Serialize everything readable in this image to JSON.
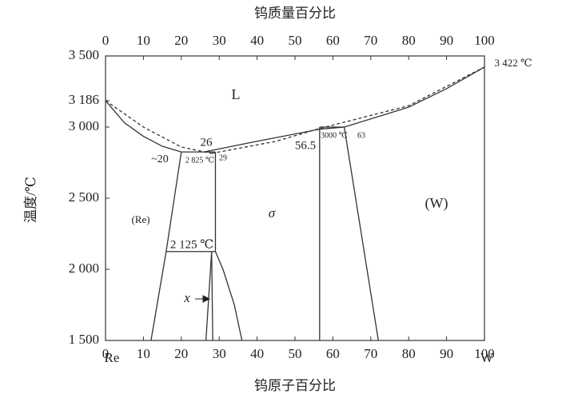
{
  "chart_data": {
    "type": "line",
    "title": "钨质量百分比",
    "xlabel": "钨原子百分比",
    "ylabel": "温度/℃",
    "xlim": [
      0,
      100
    ],
    "xticks": [
      0,
      10,
      20,
      30,
      40,
      50,
      60,
      70,
      80,
      90,
      100
    ],
    "x2lim": [
      0,
      100
    ],
    "x2ticks": [
      0,
      10,
      20,
      30,
      40,
      50,
      60,
      70,
      80,
      90,
      100
    ],
    "ylim": [
      1500,
      3500
    ],
    "yticks": [
      {
        "value": 1500,
        "label": "1 500"
      },
      {
        "value": 2000,
        "label": "2 000"
      },
      {
        "value": 2500,
        "label": "2 500"
      },
      {
        "value": 3000,
        "label": "3 000"
      },
      {
        "value": 3186,
        "label": "3 186"
      },
      {
        "value": 3500,
        "label": "3 500"
      }
    ],
    "series": [
      {
        "color": "#333333",
        "dashed": false,
        "x": [
          0,
          5,
          10,
          15,
          20
        ],
        "y": [
          3186,
          3030,
          2935,
          2865,
          2825
        ]
      },
      {
        "color": "#333333",
        "dashed": false,
        "x": [
          20,
          29
        ],
        "y": [
          2825,
          2825
        ]
      },
      {
        "color": "#333333",
        "dashed": false,
        "x": [
          26,
          40,
          56.5,
          63,
          80,
          90,
          100
        ],
        "y": [
          2825,
          2900,
          2985,
          3000,
          3140,
          3270,
          3422
        ]
      },
      {
        "color": "#333333",
        "dashed": true,
        "x": [
          0,
          10,
          20,
          28
        ],
        "y": [
          3186,
          3000,
          2860,
          2815
        ]
      },
      {
        "color": "#333333",
        "dashed": true,
        "x": [
          28,
          45,
          56.5,
          80,
          100
        ],
        "y": [
          2815,
          2900,
          2990,
          3150,
          3422
        ]
      },
      {
        "color": "#333333",
        "dashed": false,
        "x": [
          56.5,
          63
        ],
        "y": [
          3000,
          3000
        ]
      },
      {
        "color": "#333333",
        "dashed": false,
        "x": [
          56.5,
          56.5
        ],
        "y": [
          3000,
          1500
        ]
      },
      {
        "color": "#333333",
        "dashed": false,
        "x": [
          63,
          72
        ],
        "y": [
          3000,
          1500
        ]
      },
      {
        "color": "#333333",
        "dashed": false,
        "x": [
          20,
          16,
          12
        ],
        "y": [
          2825,
          2125,
          1500
        ]
      },
      {
        "color": "#333333",
        "dashed": false,
        "x": [
          29,
          29
        ],
        "y": [
          2825,
          2125
        ]
      },
      {
        "color": "#333333",
        "dashed": false,
        "x": [
          16,
          29
        ],
        "y": [
          2125,
          2125
        ]
      },
      {
        "color": "#333333",
        "dashed": false,
        "x": [
          28,
          26.5
        ],
        "y": [
          2125,
          1500
        ]
      },
      {
        "color": "#333333",
        "dashed": false,
        "x": [
          28,
          28.3
        ],
        "y": [
          2125,
          1500
        ]
      },
      {
        "color": "#333333",
        "dashed": false,
        "x": [
          29,
          31,
          34,
          36
        ],
        "y": [
          2125,
          2000,
          1750,
          1500
        ]
      }
    ],
    "annotations": [
      "L",
      "σ",
      "(Re)",
      "(W)",
      "26",
      "~20",
      "2 825 ℃",
      "29",
      "56.5",
      "3000 ℃",
      "63",
      "2 125 ℃",
      "x",
      "3 422 ℃",
      "Re",
      "W"
    ]
  }
}
